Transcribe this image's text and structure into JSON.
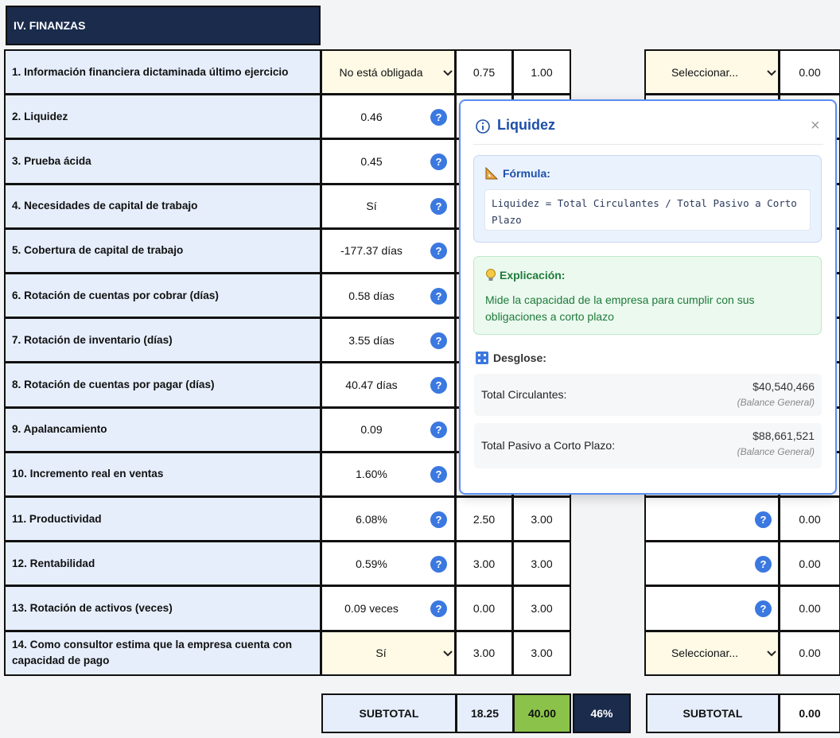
{
  "section_title": "IV. FINANZAS",
  "help_icon": "?",
  "rows": [
    {
      "label": "1. Información financiera dictaminada último ejercicio",
      "select": "No está obligada",
      "score": "0.75",
      "max": "1.00",
      "right_select": "Seleccionar...",
      "right_value": "0.00"
    },
    {
      "label": "2. Liquidez",
      "value": "0.46"
    },
    {
      "label": "3. Prueba ácida",
      "value": "0.45"
    },
    {
      "label": "4. Necesidades de capital de trabajo",
      "value": "Sí"
    },
    {
      "label": "5. Cobertura de capital de trabajo",
      "value": "-177.37 días"
    },
    {
      "label": "6. Rotación de cuentas por cobrar (días)",
      "value": "0.58 días"
    },
    {
      "label": "7. Rotación de inventario (días)",
      "value": "3.55 días"
    },
    {
      "label": "8. Rotación de cuentas por pagar (días)",
      "value": "40.47 días"
    },
    {
      "label": "9. Apalancamiento",
      "value": "0.09"
    },
    {
      "label": "10. Incremento real en ventas",
      "value": "1.60%"
    },
    {
      "label": "11. Productividad",
      "value": "6.08%",
      "score": "2.50",
      "max": "3.00",
      "right_value": "0.00"
    },
    {
      "label": "12. Rentabilidad",
      "value": "0.59%",
      "score": "3.00",
      "max": "3.00",
      "right_value": "0.00"
    },
    {
      "label": "13. Rotación de activos (veces)",
      "value": "0.09 veces",
      "score": "0.00",
      "max": "3.00",
      "right_value": "0.00"
    },
    {
      "label": "14. Como consultor estima que la empresa cuenta con capacidad de pago",
      "select": "Sí",
      "score": "3.00",
      "max": "3.00",
      "right_select": "Seleccionar...",
      "right_value": "0.00"
    }
  ],
  "subtotal": {
    "label": "SUBTOTAL",
    "score": "18.25",
    "max": "40.00",
    "percent": "46%",
    "right_label": "SUBTOTAL",
    "right_value": "0.00"
  },
  "popup": {
    "title": "Liquidez",
    "close": "×",
    "formula_title": "Fórmula:",
    "formula": "Liquidez = Total Circulantes / Total Pasivo a Corto Plazo",
    "explanation_title": "Explicación:",
    "explanation": "Mide la capacidad de la empresa para cumplir con sus obligaciones a corto plazo",
    "breakdown_title": "Desglose:",
    "items": [
      {
        "label": "Total Circulantes:",
        "amount": "$40,540,466",
        "source": "(Balance General)"
      },
      {
        "label": "Total Pasivo a Corto Plazo:",
        "amount": "$88,661,521",
        "source": "(Balance General)"
      }
    ]
  }
}
